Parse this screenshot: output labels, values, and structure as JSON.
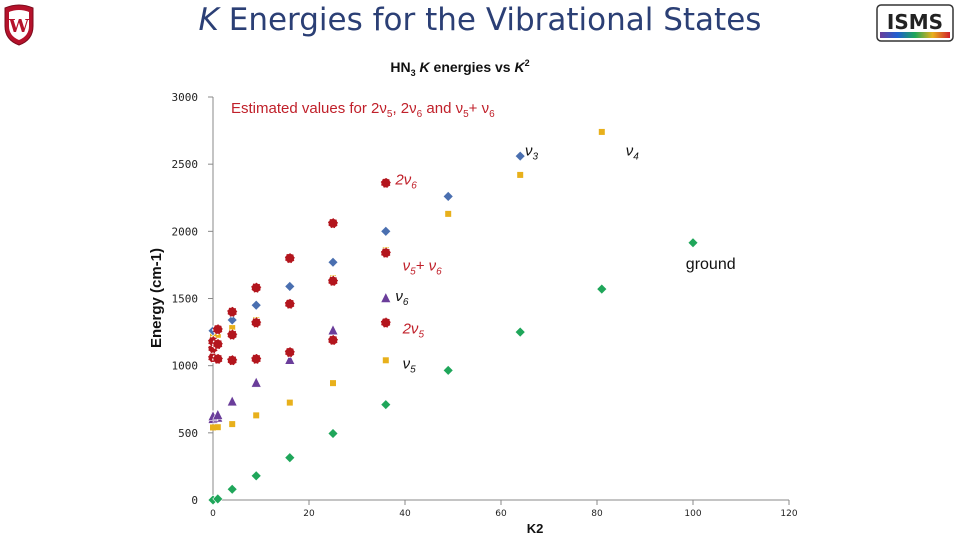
{
  "slide": {
    "title_prefix": "K",
    "title_rest": " Energies for the Vibrational States"
  },
  "logos": {
    "left": {
      "name": "university-crest-logo",
      "color": "#b5122b"
    },
    "right": {
      "name": "isms-logo",
      "text": "ISMS"
    }
  },
  "chart_data": {
    "type": "scatter",
    "title_parts": {
      "mol": "HN",
      "sub": "3",
      "k": " K",
      "mid": " energies vs ",
      "k2": "K",
      "sup": "2"
    },
    "subtitle_parts": [
      "Estimated values for 2",
      "ν",
      "5",
      ", 2",
      "ν",
      "6",
      " and ",
      "ν",
      "5",
      "+ ",
      "ν",
      "6"
    ],
    "xlabel": "K2",
    "ylabel": "Energy (cm-1)",
    "xlim": [
      0,
      120
    ],
    "ylim": [
      0,
      3000
    ],
    "x_ticks": [
      "0",
      "20",
      "40",
      "60",
      "80",
      "100",
      "120"
    ],
    "y_ticks": [
      "0",
      "500",
      "1000",
      "1500",
      "2000",
      "2500",
      "3000"
    ],
    "series": [
      {
        "name": "ground",
        "marker": "diamond",
        "color": "#1fa65a",
        "points": [
          [
            0,
            0
          ],
          [
            1,
            8
          ],
          [
            4,
            80
          ],
          [
            9,
            180
          ],
          [
            16,
            315
          ],
          [
            25,
            495
          ],
          [
            36,
            710
          ],
          [
            49,
            965
          ],
          [
            64,
            1250
          ],
          [
            81,
            1570
          ],
          [
            100,
            1915
          ]
        ]
      },
      {
        "name": "ν5",
        "marker": "square",
        "color": "#e8b01b",
        "points": [
          [
            0,
            540
          ],
          [
            1,
            542
          ],
          [
            4,
            565
          ],
          [
            9,
            630
          ],
          [
            16,
            725
          ],
          [
            25,
            870
          ],
          [
            36,
            1040
          ]
        ]
      },
      {
        "name": "2ν5",
        "marker": "triangle",
        "color": "#6a3d9a",
        "points": [
          [
            0,
            600
          ],
          [
            1,
            610
          ],
          [
            4,
            730
          ],
          [
            9,
            870
          ],
          [
            16,
            1040
          ],
          [
            25,
            1260
          ]
        ]
      },
      {
        "name": "ν6",
        "marker": "triangle",
        "color": "#6a3d9a",
        "points": [
          [
            0,
            620
          ],
          [
            1,
            630
          ],
          [
            36,
            1500
          ]
        ]
      },
      {
        "name": "2ν6",
        "marker": "circle",
        "color": "#b3151d",
        "points": [
          [
            0,
            1060
          ],
          [
            0,
            1130
          ],
          [
            0,
            1180
          ],
          [
            1,
            1050
          ],
          [
            1,
            1160
          ],
          [
            1,
            1270
          ],
          [
            4,
            1040
          ],
          [
            4,
            1230
          ],
          [
            4,
            1400
          ],
          [
            9,
            1050
          ],
          [
            9,
            1320
          ],
          [
            9,
            1580
          ],
          [
            16,
            1100
          ],
          [
            16,
            1460
          ],
          [
            16,
            1800
          ],
          [
            25,
            1190
          ],
          [
            25,
            1630
          ],
          [
            25,
            2060
          ],
          [
            36,
            1320
          ],
          [
            36,
            1840
          ],
          [
            36,
            2360
          ]
        ]
      },
      {
        "name": "ν5+ν6",
        "marker": "square",
        "color": "#e8b01b",
        "points": [
          [
            0,
            1220
          ],
          [
            1,
            1230
          ],
          [
            4,
            1280
          ],
          [
            9,
            1340
          ],
          [
            16,
            1450
          ],
          [
            25,
            1650
          ],
          [
            36,
            1860
          ],
          [
            49,
            2130
          ],
          [
            64,
            2420
          ],
          [
            81,
            2740
          ]
        ]
      },
      {
        "name": "ν3",
        "marker": "diamond",
        "color": "#4a6fb0",
        "points": [
          [
            0,
            1260
          ],
          [
            4,
            1340
          ],
          [
            9,
            1450
          ],
          [
            16,
            1590
          ],
          [
            25,
            1770
          ],
          [
            36,
            2000
          ],
          [
            49,
            2260
          ],
          [
            64,
            2560
          ]
        ]
      }
    ],
    "annotations": [
      {
        "parts": [
          "ν",
          "3"
        ],
        "style": "blk",
        "x": 65,
        "y": 2565
      },
      {
        "parts": [
          "ν",
          "4"
        ],
        "style": "blk",
        "x": 86,
        "y": 2565
      },
      {
        "parts": [
          "2ν",
          "6"
        ],
        "style": "red",
        "x": 38,
        "y": 2350
      },
      {
        "parts": [
          "ν",
          "5",
          "+ ν",
          "6"
        ],
        "style": "red",
        "x": 39.5,
        "y": 1710
      },
      {
        "parts": [
          "ν",
          "6"
        ],
        "style": "blk",
        "x": 38,
        "y": 1480
      },
      {
        "parts": [
          "2ν",
          "5"
        ],
        "style": "red",
        "x": 39.5,
        "y": 1240
      },
      {
        "parts": [
          "ν",
          "5"
        ],
        "style": "blk",
        "x": 39.5,
        "y": 980
      },
      {
        "parts": [
          "ground"
        ],
        "style": "ground",
        "x": 98.5,
        "y": 1720
      }
    ]
  }
}
